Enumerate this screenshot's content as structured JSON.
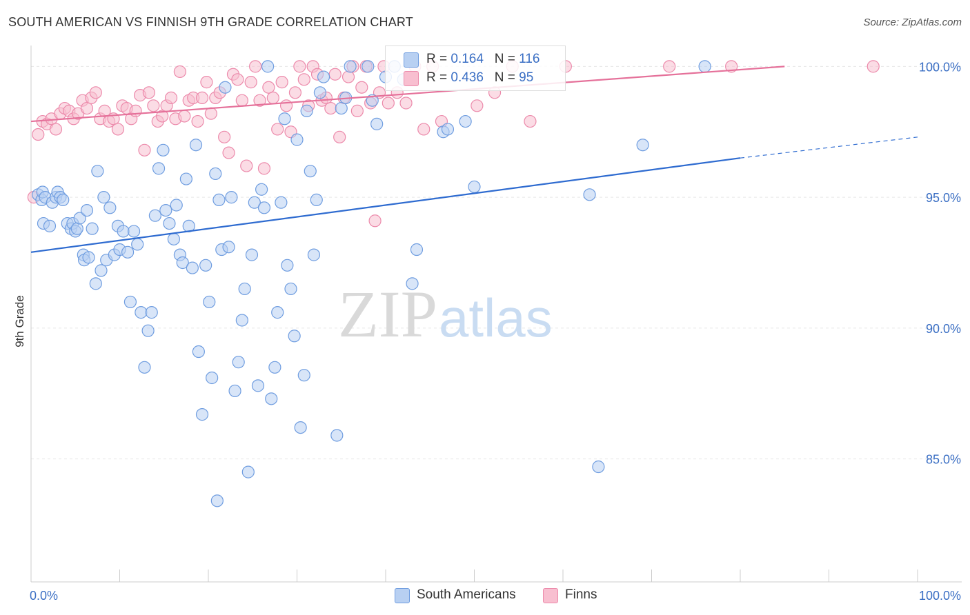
{
  "header": {
    "title": "SOUTH AMERICAN VS FINNISH 9TH GRADE CORRELATION CHART",
    "source": "Source: ZipAtlas.com"
  },
  "watermark": {
    "zip": "ZIP",
    "atlas": "atlas"
  },
  "legend": {
    "r_label": "R =",
    "n_label": "N =",
    "south_americans": {
      "r": "0.164",
      "n": "116"
    },
    "finns": {
      "r": "0.436",
      "n": "95"
    }
  },
  "colors": {
    "blue_fill": "#b8d0f2",
    "blue_stroke": "#6f9de0",
    "blue_line": "#2e6bd0",
    "pink_fill": "#f8bfd0",
    "pink_stroke": "#ec8aab",
    "pink_line": "#e5719a",
    "value_text": "#3b6fc4"
  },
  "chart_data": {
    "type": "scatter",
    "title": "SOUTH AMERICAN VS FINNISH 9TH GRADE CORRELATION CHART",
    "xlabel": "",
    "ylabel": "9th Grade",
    "xlim": [
      0,
      100
    ],
    "ylim": [
      80.3,
      100.8
    ],
    "x_tick_labels": [
      "0.0%",
      "100.0%"
    ],
    "y_ticks": [
      85,
      90,
      95,
      100
    ],
    "y_tick_labels": [
      "85.0%",
      "90.0%",
      "95.0%",
      "100.0%"
    ],
    "grid": true,
    "legend_position": "top-center",
    "series": [
      {
        "name": "South Americans",
        "color": "blue",
        "trend": {
          "x": [
            0,
            80
          ],
          "y": [
            92.9,
            96.5
          ],
          "dashed_to": [
            100,
            97.3
          ]
        },
        "points": [
          [
            0.8,
            95.1
          ],
          [
            1.2,
            94.9
          ],
          [
            1.3,
            95.2
          ],
          [
            1.4,
            94.0
          ],
          [
            1.6,
            95.0
          ],
          [
            2.1,
            93.9
          ],
          [
            2.4,
            94.8
          ],
          [
            2.8,
            95.0
          ],
          [
            3.0,
            95.2
          ],
          [
            3.3,
            95.0
          ],
          [
            3.6,
            94.9
          ],
          [
            4.1,
            94.0
          ],
          [
            4.5,
            93.8
          ],
          [
            4.7,
            94.0
          ],
          [
            5.0,
            93.7
          ],
          [
            5.2,
            93.8
          ],
          [
            5.5,
            94.2
          ],
          [
            5.9,
            92.8
          ],
          [
            6.0,
            92.6
          ],
          [
            6.3,
            94.5
          ],
          [
            6.5,
            92.7
          ],
          [
            6.9,
            93.8
          ],
          [
            7.3,
            91.7
          ],
          [
            7.5,
            96.0
          ],
          [
            7.9,
            92.2
          ],
          [
            8.2,
            95.0
          ],
          [
            8.5,
            92.6
          ],
          [
            8.9,
            94.6
          ],
          [
            9.4,
            92.8
          ],
          [
            9.8,
            93.9
          ],
          [
            10.0,
            93.0
          ],
          [
            10.4,
            93.7
          ],
          [
            10.9,
            92.9
          ],
          [
            11.2,
            91.0
          ],
          [
            11.6,
            93.7
          ],
          [
            12.0,
            93.2
          ],
          [
            12.4,
            90.6
          ],
          [
            12.8,
            88.5
          ],
          [
            13.2,
            89.9
          ],
          [
            13.6,
            90.6
          ],
          [
            14.0,
            94.3
          ],
          [
            14.4,
            96.1
          ],
          [
            14.9,
            96.8
          ],
          [
            15.2,
            94.5
          ],
          [
            15.6,
            94.0
          ],
          [
            16.1,
            93.4
          ],
          [
            16.4,
            94.7
          ],
          [
            16.8,
            92.8
          ],
          [
            17.1,
            92.5
          ],
          [
            17.5,
            95.7
          ],
          [
            17.8,
            93.9
          ],
          [
            18.2,
            92.3
          ],
          [
            18.6,
            97.0
          ],
          [
            18.9,
            89.1
          ],
          [
            19.3,
            86.7
          ],
          [
            19.7,
            92.4
          ],
          [
            20.1,
            91.0
          ],
          [
            20.4,
            88.1
          ],
          [
            20.8,
            95.9
          ],
          [
            21.2,
            94.9
          ],
          [
            21.5,
            93.0
          ],
          [
            21.9,
            99.2
          ],
          [
            22.3,
            93.1
          ],
          [
            22.6,
            95.0
          ],
          [
            23.0,
            87.6
          ],
          [
            23.4,
            88.7
          ],
          [
            23.8,
            90.3
          ],
          [
            24.1,
            91.5
          ],
          [
            24.5,
            84.5
          ],
          [
            24.9,
            92.8
          ],
          [
            25.2,
            94.8
          ],
          [
            25.6,
            87.8
          ],
          [
            26.0,
            95.3
          ],
          [
            26.3,
            94.6
          ],
          [
            26.7,
            100.0
          ],
          [
            27.1,
            87.3
          ],
          [
            27.5,
            88.5
          ],
          [
            27.8,
            90.6
          ],
          [
            28.2,
            94.8
          ],
          [
            28.6,
            98.0
          ],
          [
            28.9,
            92.4
          ],
          [
            29.3,
            91.5
          ],
          [
            29.7,
            89.7
          ],
          [
            30.0,
            97.2
          ],
          [
            30.4,
            86.2
          ],
          [
            30.8,
            88.2
          ],
          [
            31.1,
            98.3
          ],
          [
            31.5,
            96.0
          ],
          [
            31.9,
            92.8
          ],
          [
            32.2,
            94.9
          ],
          [
            32.6,
            99.0
          ],
          [
            33.0,
            99.6
          ],
          [
            34.5,
            85.9
          ],
          [
            35.0,
            98.4
          ],
          [
            35.5,
            98.8
          ],
          [
            36.0,
            100.0
          ],
          [
            38.0,
            100.0
          ],
          [
            38.5,
            98.7
          ],
          [
            39.0,
            97.8
          ],
          [
            40.0,
            99.6
          ],
          [
            41.0,
            100.0
          ],
          [
            42.0,
            99.5
          ],
          [
            43.0,
            91.7
          ],
          [
            43.5,
            93.0
          ],
          [
            46.5,
            97.5
          ],
          [
            47.0,
            97.6
          ],
          [
            49.0,
            97.9
          ],
          [
            50.0,
            95.4
          ],
          [
            63.0,
            95.1
          ],
          [
            64.0,
            84.7
          ],
          [
            69.0,
            97.0
          ],
          [
            76.0,
            100.0
          ],
          [
            21.0,
            83.4
          ]
        ]
      },
      {
        "name": "Finns",
        "color": "pink",
        "trend": {
          "x": [
            0,
            85
          ],
          "y": [
            97.9,
            100.0
          ]
        },
        "points": [
          [
            0.3,
            95.0
          ],
          [
            0.8,
            97.4
          ],
          [
            1.3,
            97.9
          ],
          [
            1.8,
            97.8
          ],
          [
            2.3,
            98.0
          ],
          [
            2.8,
            97.6
          ],
          [
            3.3,
            98.2
          ],
          [
            3.8,
            98.4
          ],
          [
            4.3,
            98.3
          ],
          [
            4.8,
            98.0
          ],
          [
            5.3,
            98.2
          ],
          [
            5.8,
            98.7
          ],
          [
            6.3,
            98.4
          ],
          [
            6.8,
            98.8
          ],
          [
            7.3,
            99.0
          ],
          [
            7.8,
            98.0
          ],
          [
            8.3,
            98.3
          ],
          [
            8.8,
            97.9
          ],
          [
            9.3,
            98.0
          ],
          [
            9.8,
            97.6
          ],
          [
            10.3,
            98.5
          ],
          [
            10.8,
            98.4
          ],
          [
            11.3,
            98.0
          ],
          [
            11.8,
            98.3
          ],
          [
            12.3,
            98.9
          ],
          [
            12.8,
            96.8
          ],
          [
            13.3,
            99.0
          ],
          [
            13.8,
            98.5
          ],
          [
            14.3,
            97.9
          ],
          [
            14.8,
            98.1
          ],
          [
            15.3,
            98.5
          ],
          [
            15.8,
            98.8
          ],
          [
            16.3,
            98.0
          ],
          [
            16.8,
            99.8
          ],
          [
            17.3,
            98.1
          ],
          [
            17.8,
            98.7
          ],
          [
            18.3,
            98.8
          ],
          [
            18.8,
            97.9
          ],
          [
            19.3,
            98.8
          ],
          [
            19.8,
            99.4
          ],
          [
            20.3,
            98.2
          ],
          [
            20.8,
            98.8
          ],
          [
            21.3,
            99.0
          ],
          [
            21.8,
            97.3
          ],
          [
            22.3,
            96.7
          ],
          [
            22.8,
            99.7
          ],
          [
            23.3,
            99.5
          ],
          [
            23.8,
            98.7
          ],
          [
            24.3,
            96.2
          ],
          [
            24.8,
            99.4
          ],
          [
            25.3,
            100.0
          ],
          [
            25.8,
            98.7
          ],
          [
            26.3,
            96.1
          ],
          [
            26.8,
            99.2
          ],
          [
            27.3,
            98.8
          ],
          [
            27.8,
            97.6
          ],
          [
            28.3,
            99.4
          ],
          [
            28.8,
            98.5
          ],
          [
            29.3,
            97.5
          ],
          [
            29.8,
            99.0
          ],
          [
            30.3,
            100.0
          ],
          [
            30.8,
            99.5
          ],
          [
            31.3,
            98.5
          ],
          [
            31.8,
            100.0
          ],
          [
            32.3,
            99.7
          ],
          [
            32.8,
            98.7
          ],
          [
            33.3,
            98.8
          ],
          [
            33.8,
            98.4
          ],
          [
            34.3,
            99.7
          ],
          [
            34.8,
            97.3
          ],
          [
            35.3,
            98.8
          ],
          [
            35.8,
            99.6
          ],
          [
            36.3,
            100.0
          ],
          [
            36.8,
            98.3
          ],
          [
            37.3,
            99.2
          ],
          [
            37.8,
            100.0
          ],
          [
            38.3,
            98.6
          ],
          [
            38.8,
            94.1
          ],
          [
            39.3,
            99.0
          ],
          [
            39.8,
            100.0
          ],
          [
            40.3,
            98.6
          ],
          [
            41.3,
            99.0
          ],
          [
            42.3,
            98.6
          ],
          [
            43.3,
            100.0
          ],
          [
            44.3,
            97.6
          ],
          [
            45.3,
            100.0
          ],
          [
            46.3,
            97.9
          ],
          [
            50.3,
            98.5
          ],
          [
            52.3,
            99.0
          ],
          [
            54.3,
            100.0
          ],
          [
            56.3,
            97.9
          ],
          [
            60.3,
            100.0
          ],
          [
            72.0,
            100.0
          ],
          [
            79.0,
            100.0
          ],
          [
            95.0,
            100.0
          ]
        ]
      }
    ]
  }
}
